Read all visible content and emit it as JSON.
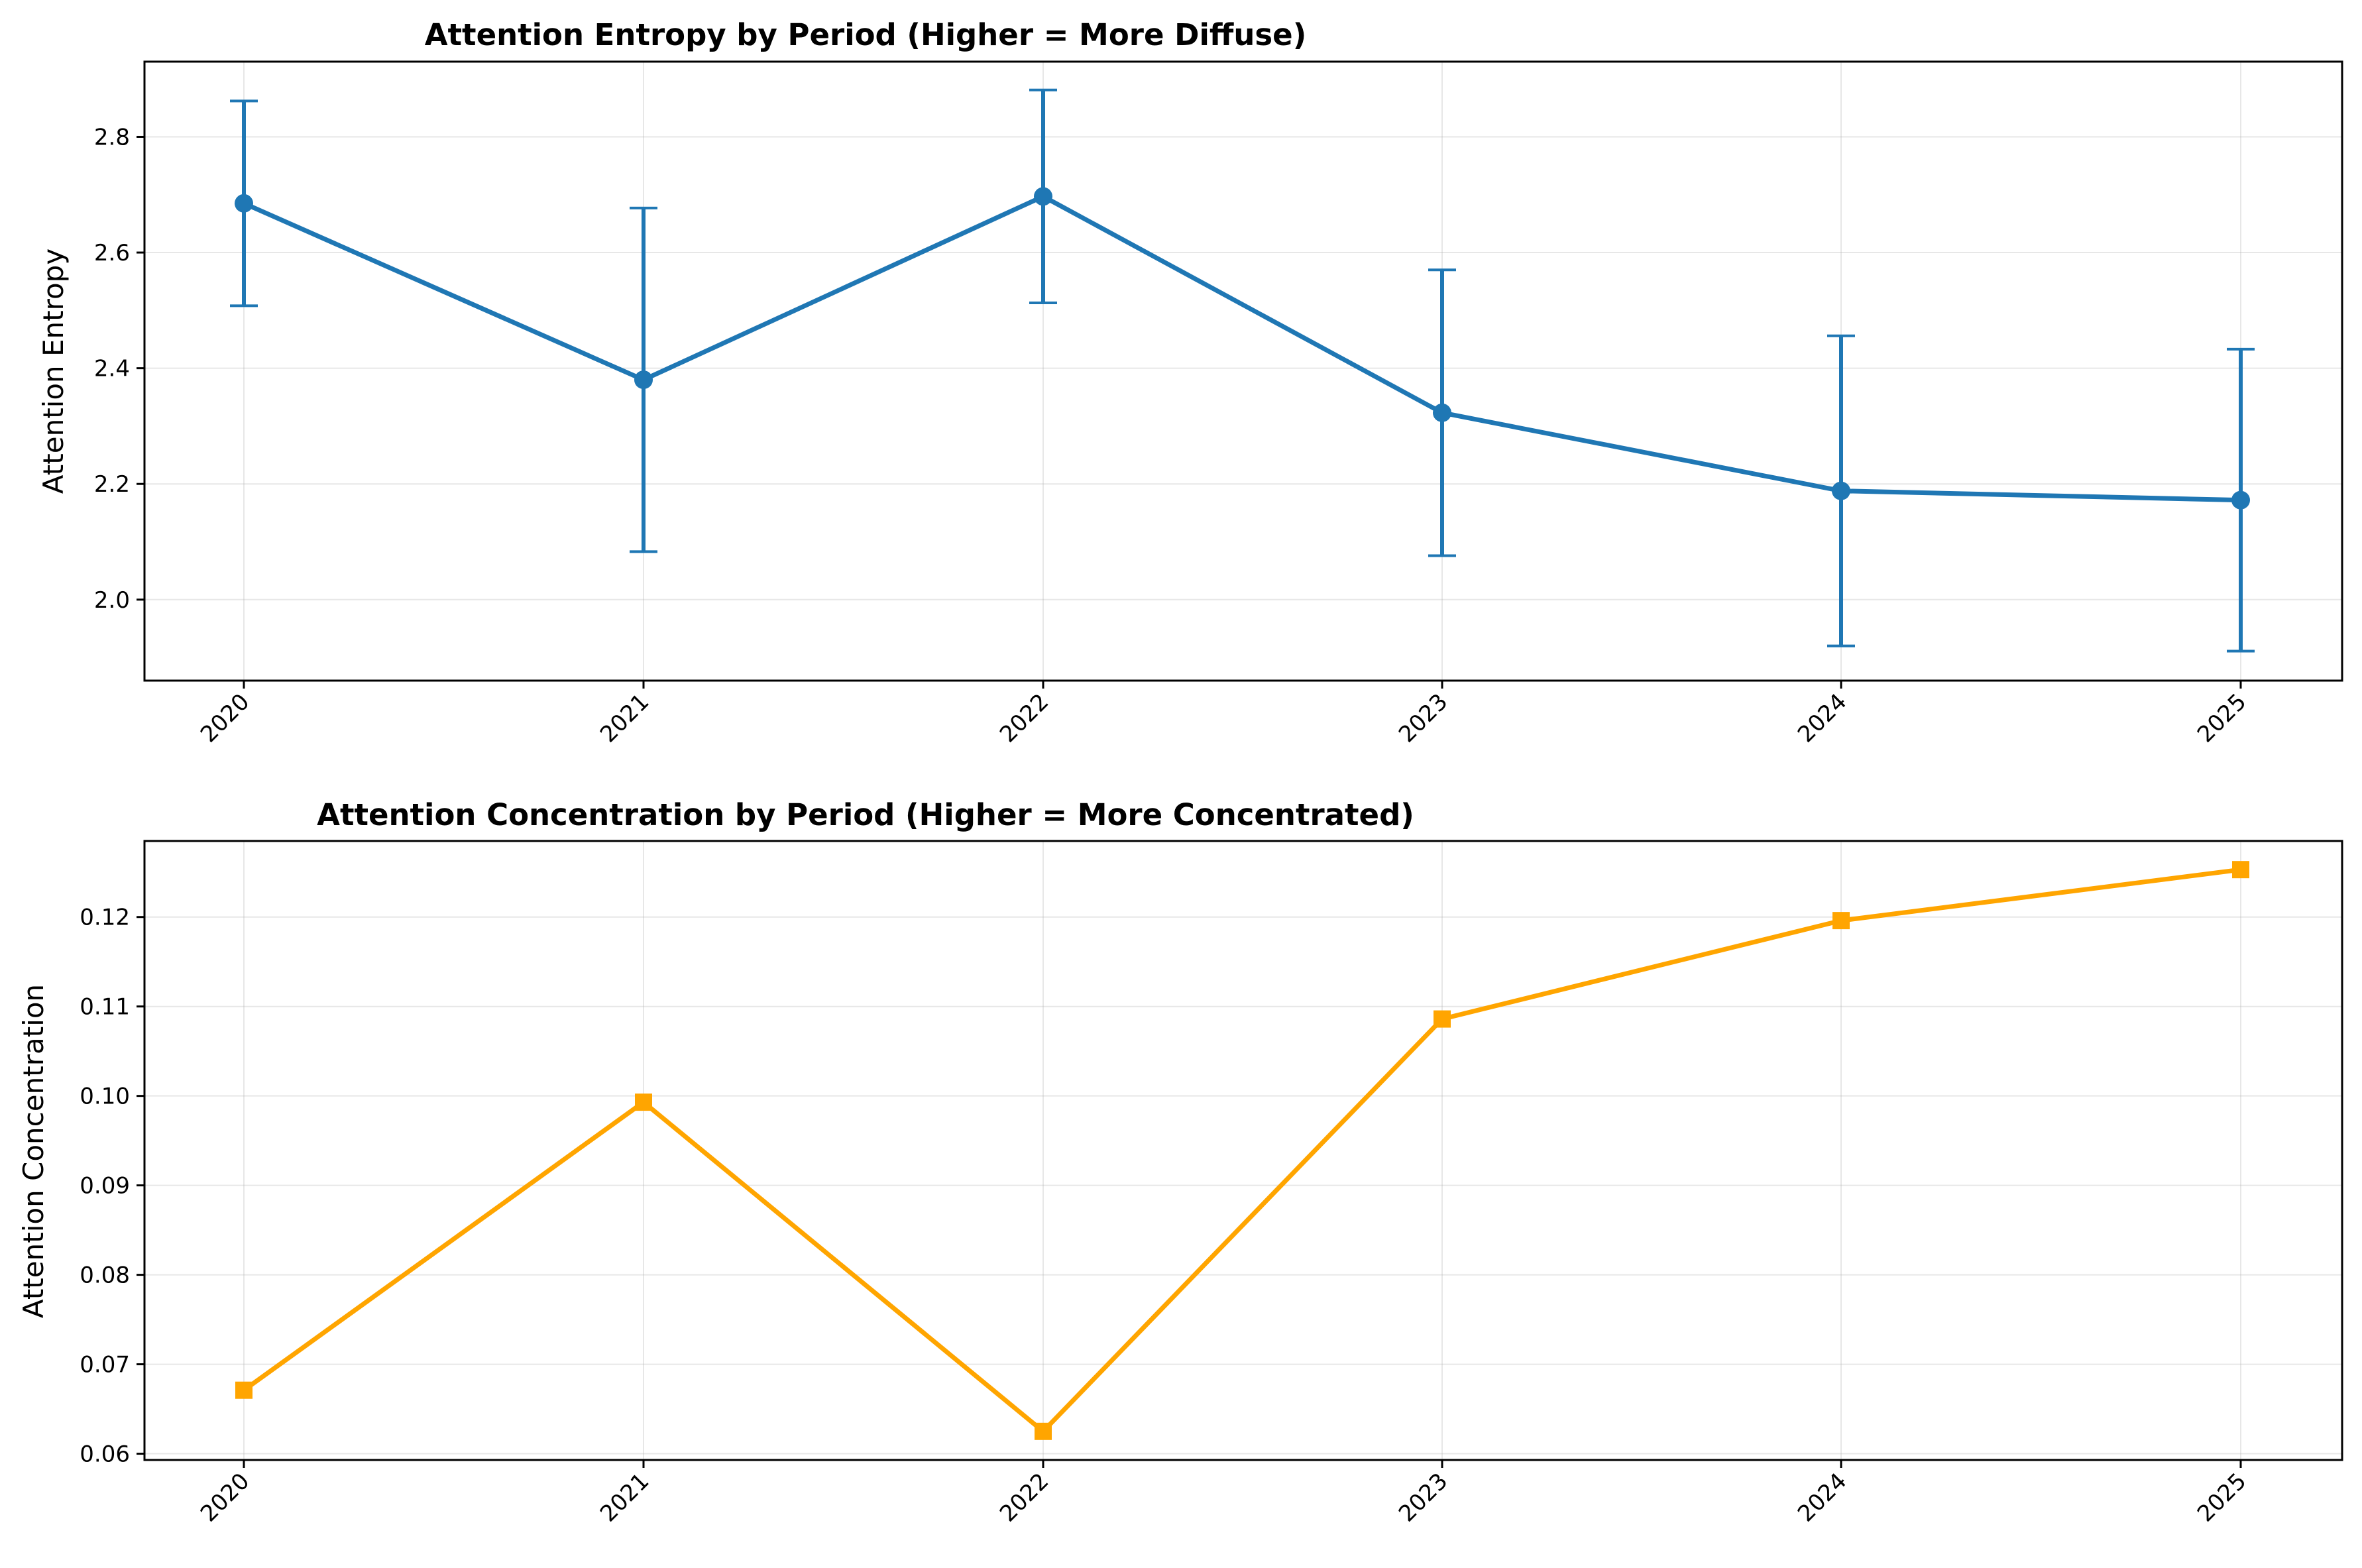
{
  "figure": {
    "background": "#ffffff"
  },
  "chart_data": [
    {
      "type": "line",
      "title": "Attention Entropy by Period (Higher = More Diffuse)",
      "xlabel": "",
      "ylabel": "Attention Entropy",
      "categories": [
        "2020",
        "2021",
        "2022",
        "2023",
        "2024",
        "2025"
      ],
      "series": [
        {
          "values": [
            2.685,
            2.38,
            2.697,
            2.323,
            2.188,
            2.172
          ],
          "error": [
            0.177,
            0.297,
            0.184,
            0.247,
            0.268,
            0.261
          ],
          "color": "#1f77b4",
          "marker": "circle"
        }
      ],
      "ylim": [
        1.86,
        2.93
      ],
      "yticks": [
        2.0,
        2.2,
        2.4,
        2.6,
        2.8
      ],
      "ytick_labels": [
        "2.0",
        "2.2",
        "2.4",
        "2.6",
        "2.8"
      ],
      "grid": true,
      "legend": "none"
    },
    {
      "type": "line",
      "title": "Attention Concentration by Period (Higher = More Concentrated)",
      "xlabel": "",
      "ylabel": "Attention Concentration",
      "categories": [
        "2020",
        "2021",
        "2022",
        "2023",
        "2024",
        "2025"
      ],
      "series": [
        {
          "values": [
            0.0671,
            0.0993,
            0.0625,
            0.1086,
            0.1196,
            0.1253
          ],
          "color": "#ffa500",
          "marker": "square"
        }
      ],
      "ylim": [
        0.0593,
        0.1285
      ],
      "yticks": [
        0.06,
        0.07,
        0.08,
        0.09,
        0.1,
        0.11,
        0.12
      ],
      "ytick_labels": [
        "0.06",
        "0.07",
        "0.08",
        "0.09",
        "0.10",
        "0.11",
        "0.12"
      ],
      "grid": true,
      "legend": "none"
    }
  ]
}
